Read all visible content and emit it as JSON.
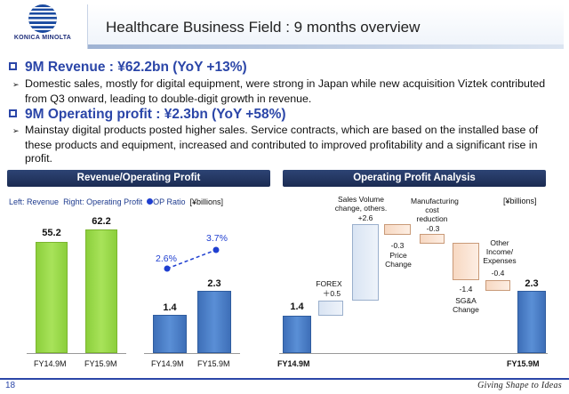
{
  "header": {
    "logo_text": "KONICA MINOLTA",
    "title": "Healthcare Business Field : 9 months overview"
  },
  "headlines": [
    {
      "heading": "9M Revenue :    ¥62.2bn  (YoY +13%)",
      "text": "Domestic sales, mostly for digital equipment, were strong in Japan while new acquisition Viztek contributed from Q3 onward, leading to double-digit growth in revenue."
    },
    {
      "heading": "9M Operating profit : ¥2.3bn    (YoY +58%)",
      "text": "Mainstay digital products posted higher sales. Service contracts, which are based on the installed base of these products and equipment, increased and contributed to improved profitability and a significant rise in profit."
    }
  ],
  "left_panel": {
    "title": "Revenue/Operating Profit",
    "legend": {
      "left": "Left: Revenue",
      "right": "Right: Operating Profit",
      "op_ratio": "OP Ratio",
      "unit": "[¥billions]"
    },
    "chart_data": {
      "type": "bar",
      "categories": [
        "FY14.9M",
        "FY15.9M"
      ],
      "series": [
        {
          "name": "Revenue",
          "values": [
            55.2,
            62.2
          ]
        },
        {
          "name": "Operating Profit",
          "values": [
            1.4,
            2.3
          ]
        },
        {
          "name": "OP Ratio",
          "values": [
            "2.6%",
            "3.7%"
          ]
        }
      ],
      "labels": {
        "revenue": [
          "55.2",
          "62.2"
        ],
        "op": [
          "1.4",
          "2.3"
        ],
        "ratio": [
          "2.6%",
          "3.7%"
        ]
      }
    }
  },
  "right_panel": {
    "title": "Operating Profit Analysis",
    "unit": "[¥billions]",
    "chart_data": {
      "type": "bar",
      "start": {
        "label": "FY14.9M",
        "value": 1.4,
        "text": "1.4"
      },
      "end": {
        "label": "FY15.9M",
        "value": 2.3,
        "text": "2.3"
      },
      "steps": [
        {
          "name": "FOREX",
          "value": 0.5,
          "text": "＋0.5"
        },
        {
          "name": "Sales Volume change, others.",
          "value": 2.6,
          "text": "+2.6"
        },
        {
          "name": "Price Change",
          "value": -0.3,
          "text": "-0.3"
        },
        {
          "name": "Manufacturing cost reduction",
          "value": -0.3,
          "text": "-0.3"
        },
        {
          "name": "SG&A Change",
          "value": -1.4,
          "text": "-1.4"
        },
        {
          "name": "Other Income/ Expenses",
          "value": -0.4,
          "text": "-0.4"
        }
      ]
    }
  },
  "footer": {
    "page": "18",
    "tagline": "Giving Shape to Ideas"
  },
  "colors": {
    "brand": "#2b46a8",
    "revenue_bar": "#8ccf3c",
    "op_bar": "#4a7fc6",
    "panel_header": "#1f3160"
  }
}
